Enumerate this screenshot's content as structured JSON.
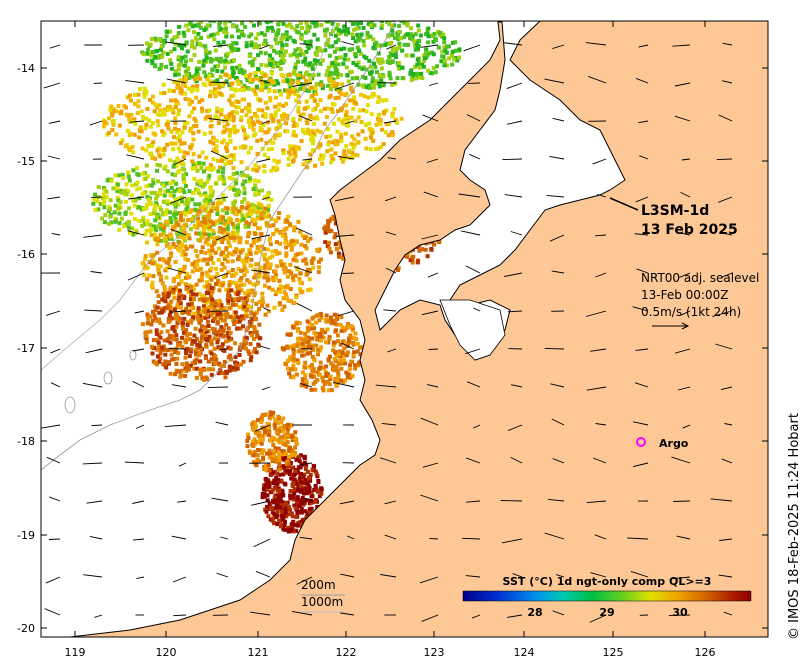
{
  "map": {
    "title_line1": "L3SM-1d",
    "title_line2": "13 Feb 2025",
    "currents_line1": "NRT00 adj. sealevel",
    "currents_line2": "13-Feb 00:00Z",
    "currents_line3": "0.5m/s (1kt 24h)",
    "argo_label": "Argo",
    "contour_label_1": "200m",
    "contour_label_2": "1000m",
    "credit": "© IMOS 18-Feb-2025 11:24 Hobart",
    "lat_ticks": [
      "-14",
      "-15",
      "-16",
      "-17",
      "-18",
      "-19",
      "-20"
    ],
    "lon_ticks": [
      "119",
      "120",
      "121",
      "122",
      "123",
      "124",
      "125",
      "126"
    ]
  },
  "legend": {
    "title": "SST (°C) 1d ngt-only comp QL>=3",
    "ticks": [
      "28",
      "29",
      "30"
    ]
  },
  "colors": {
    "land": "#fdc896",
    "sst_low": "#00008b",
    "sst_high": "#8b0000",
    "argo": "#ff00ff"
  }
}
